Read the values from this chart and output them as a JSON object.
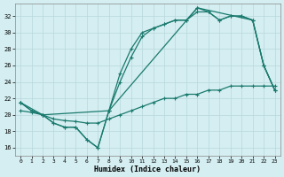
{
  "xlabel": "Humidex (Indice chaleur)",
  "bg_color": "#d4eef1",
  "line_color": "#1a7a6e",
  "x_ticks": [
    0,
    1,
    2,
    3,
    4,
    5,
    6,
    7,
    8,
    9,
    10,
    11,
    12,
    13,
    14,
    15,
    16,
    17,
    18,
    19,
    20,
    21,
    22,
    23
  ],
  "y_ticks": [
    16,
    18,
    20,
    22,
    24,
    26,
    28,
    30,
    32
  ],
  "ylim": [
    15.0,
    33.5
  ],
  "xlim": [
    -0.5,
    23.5
  ],
  "line1_x": [
    0,
    1,
    2,
    3,
    4,
    5,
    6,
    7,
    8,
    9,
    10,
    11,
    12,
    13,
    14,
    15,
    16,
    17,
    18,
    19,
    20,
    21,
    22,
    23
  ],
  "line1_y": [
    21.5,
    20.5,
    20.0,
    19.0,
    18.5,
    18.5,
    17.0,
    16.0,
    20.5,
    25.0,
    28.0,
    30.0,
    30.5,
    31.0,
    31.5,
    31.5,
    33.0,
    32.5,
    31.5,
    32.0,
    32.0,
    31.5,
    26.0,
    23.0
  ],
  "line2_x": [
    0,
    1,
    2,
    3,
    4,
    5,
    6,
    7,
    8,
    9,
    10,
    11,
    12,
    13,
    14,
    15,
    16,
    17,
    18,
    19,
    20,
    21,
    22,
    23
  ],
  "line2_y": [
    21.5,
    20.5,
    20.0,
    19.0,
    18.5,
    18.5,
    17.0,
    16.0,
    20.5,
    24.0,
    27.0,
    29.5,
    30.5,
    31.0,
    31.5,
    31.5,
    32.5,
    32.5,
    31.5,
    32.0,
    32.0,
    31.5,
    26.0,
    23.0
  ],
  "line3_x": [
    0,
    2,
    8,
    16,
    21,
    22,
    23
  ],
  "line3_y": [
    21.5,
    20.0,
    20.5,
    33.0,
    31.5,
    26.0,
    23.0
  ],
  "line4_x": [
    0,
    1,
    2,
    3,
    4,
    5,
    6,
    7,
    8,
    9,
    10,
    11,
    12,
    13,
    14,
    15,
    16,
    17,
    18,
    19,
    20,
    21,
    22,
    23
  ],
  "line4_y": [
    20.5,
    20.3,
    20.0,
    19.5,
    19.3,
    19.2,
    19.0,
    19.0,
    19.5,
    20.0,
    20.5,
    21.0,
    21.5,
    22.0,
    22.0,
    22.5,
    22.5,
    23.0,
    23.0,
    23.5,
    23.5,
    23.5,
    23.5,
    23.5
  ]
}
